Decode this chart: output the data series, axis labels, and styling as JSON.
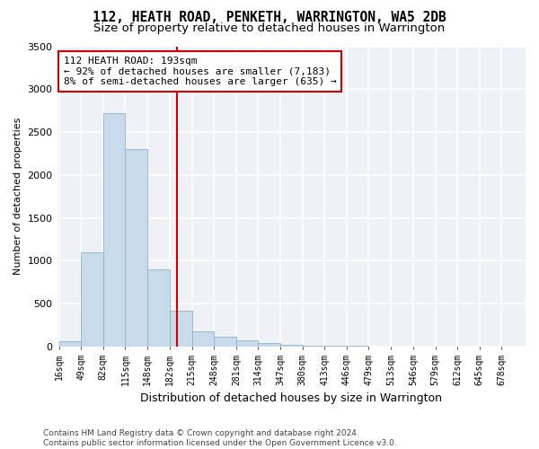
{
  "title": "112, HEATH ROAD, PENKETH, WARRINGTON, WA5 2DB",
  "subtitle": "Size of property relative to detached houses in Warrington",
  "xlabel": "Distribution of detached houses by size in Warrington",
  "ylabel": "Number of detached properties",
  "bar_color": "#c9daea",
  "bar_edge_color": "#8ab4cc",
  "background_color": "#eef2f7",
  "grid_color": "#ffffff",
  "vline_x": 193,
  "vline_color": "#cc0000",
  "annotation_text": "112 HEATH ROAD: 193sqm\n← 92% of detached houses are smaller (7,183)\n8% of semi-detached houses are larger (635) →",
  "annotation_box_color": "#cc0000",
  "bins": [
    16,
    49,
    82,
    115,
    148,
    182,
    215,
    248,
    281,
    314,
    347,
    380,
    413,
    446,
    479,
    513,
    546,
    579,
    612,
    645,
    678
  ],
  "bin_labels": [
    "16sqm",
    "49sqm",
    "82sqm",
    "115sqm",
    "148sqm",
    "182sqm",
    "215sqm",
    "248sqm",
    "281sqm",
    "314sqm",
    "347sqm",
    "380sqm",
    "413sqm",
    "446sqm",
    "479sqm",
    "513sqm",
    "546sqm",
    "579sqm",
    "612sqm",
    "645sqm",
    "678sqm"
  ],
  "values": [
    60,
    1100,
    2720,
    2300,
    900,
    415,
    180,
    110,
    75,
    35,
    15,
    8,
    5,
    3,
    2,
    1,
    1,
    1,
    1,
    1
  ],
  "ylim": [
    0,
    3500
  ],
  "yticks": [
    0,
    500,
    1000,
    1500,
    2000,
    2500,
    3000,
    3500
  ],
  "footer": "Contains HM Land Registry data © Crown copyright and database right 2024.\nContains public sector information licensed under the Open Government Licence v3.0.",
  "title_fontsize": 10.5,
  "subtitle_fontsize": 9.5,
  "annotation_fontsize": 8.0,
  "ylabel_fontsize": 8,
  "xlabel_fontsize": 9
}
